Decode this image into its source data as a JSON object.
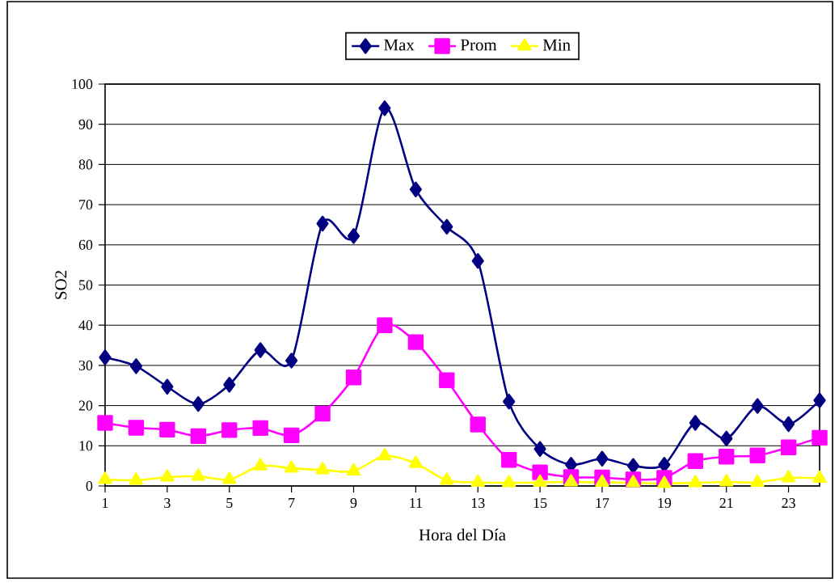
{
  "chart_data": {
    "type": "line",
    "xlabel": "Hora del Día",
    "ylabel": "SO2",
    "x": [
      1,
      2,
      3,
      4,
      5,
      6,
      7,
      8,
      9,
      10,
      11,
      12,
      13,
      14,
      15,
      16,
      17,
      18,
      19,
      20,
      21,
      22,
      23,
      24
    ],
    "series": [
      {
        "name": "Max",
        "color": "#000080",
        "marker": "diamond",
        "values": [
          32,
          29.8,
          24.7,
          20.4,
          25.2,
          33.8,
          31.2,
          65.3,
          62.2,
          94,
          73.8,
          64.5,
          56,
          21,
          9.2,
          5.3,
          6.8,
          5,
          5.3,
          15.7,
          11.8,
          19.9,
          15.4,
          21.3
        ]
      },
      {
        "name": "Prom",
        "color": "#ff00ff",
        "marker": "square",
        "values": [
          15.7,
          14.5,
          14,
          12.4,
          13.9,
          14.4,
          12.6,
          18,
          27,
          40,
          35.8,
          26.3,
          15.3,
          6.5,
          3.4,
          2.2,
          2.1,
          1.6,
          2,
          6.2,
          7.3,
          7.6,
          9.6,
          12
        ]
      },
      {
        "name": "Min",
        "color": "#ffff00",
        "marker": "triangle",
        "values": [
          1.6,
          1.4,
          2.2,
          2.4,
          1.6,
          5,
          4.4,
          4,
          3.7,
          7.5,
          5.6,
          1.4,
          0.9,
          0.8,
          0.9,
          1,
          0.9,
          0.8,
          0.6,
          0.8,
          1,
          0.9,
          2,
          1.9
        ]
      }
    ],
    "xlim": [
      1,
      24
    ],
    "xticks": [
      1,
      3,
      5,
      7,
      9,
      11,
      13,
      15,
      17,
      19,
      21,
      23
    ],
    "ylim": [
      0,
      100
    ],
    "yticks": [
      0,
      10,
      20,
      30,
      40,
      50,
      60,
      70,
      80,
      90,
      100
    ],
    "grid": "y",
    "legend": "top",
    "line_style": "solid"
  }
}
